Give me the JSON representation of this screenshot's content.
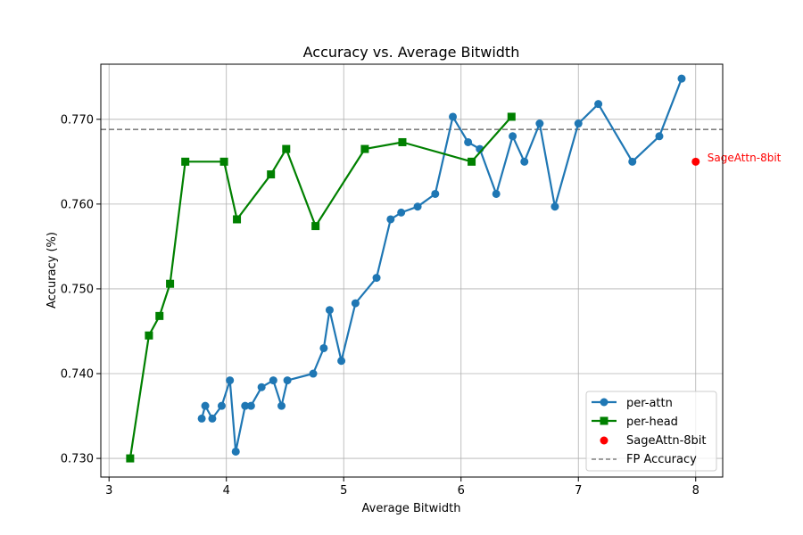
{
  "chart_data": {
    "type": "line",
    "title": "Accuracy vs. Average Bitwidth",
    "xlabel": "Average Bitwidth",
    "ylabel": "Accuracy (%)",
    "xlim": [
      2.93,
      8.23
    ],
    "ylim": [
      0.7278,
      0.7765
    ],
    "xticks": [
      3,
      4,
      5,
      6,
      7,
      8
    ],
    "yticks": [
      0.73,
      0.74,
      0.75,
      0.76,
      0.77
    ],
    "ytick_labels": [
      "0.730",
      "0.740",
      "0.750",
      "0.760",
      "0.770"
    ],
    "grid": true,
    "legend_position": "lower-right",
    "series": [
      {
        "name": "per-attn",
        "color": "#1f77b4",
        "marker": "circle",
        "x": [
          3.79,
          3.82,
          3.88,
          3.96,
          4.03,
          4.08,
          4.16,
          4.21,
          4.3,
          4.4,
          4.47,
          4.52,
          4.74,
          4.83,
          4.88,
          4.98,
          5.1,
          5.28,
          5.4,
          5.49,
          5.63,
          5.78,
          5.93,
          6.06,
          6.16,
          6.3,
          6.44,
          6.54,
          6.67,
          6.8,
          7.0,
          7.17,
          7.46,
          7.69,
          7.88
        ],
        "y": [
          0.7347,
          0.7362,
          0.7347,
          0.7362,
          0.7392,
          0.7308,
          0.7362,
          0.7362,
          0.7384,
          0.7392,
          0.7362,
          0.7392,
          0.74,
          0.743,
          0.7475,
          0.7415,
          0.7483,
          0.7513,
          0.7582,
          0.759,
          0.7597,
          0.7612,
          0.7703,
          0.7673,
          0.7665,
          0.7612,
          0.768,
          0.765,
          0.7695,
          0.7597,
          0.7695,
          0.7718,
          0.765,
          0.768,
          0.7748
        ]
      },
      {
        "name": "per-head",
        "color": "#008000",
        "marker": "square",
        "x": [
          3.18,
          3.34,
          3.43,
          3.52,
          3.65,
          3.98,
          4.09,
          4.38,
          4.51,
          4.76,
          5.18,
          5.5,
          6.09,
          6.43
        ],
        "y": [
          0.73,
          0.7445,
          0.7468,
          0.7506,
          0.765,
          0.765,
          0.7582,
          0.7635,
          0.7665,
          0.7574,
          0.7665,
          0.7673,
          0.765,
          0.7703
        ]
      }
    ],
    "points": [
      {
        "name": "SageAttn-8bit",
        "x": 8.0,
        "y": 0.765,
        "color": "#ff0000",
        "label": "SageAttn-8bit"
      }
    ],
    "reference_line": {
      "name": "FP Accuracy",
      "y": 0.7688,
      "color": "#808080",
      "style": "dashed"
    }
  }
}
